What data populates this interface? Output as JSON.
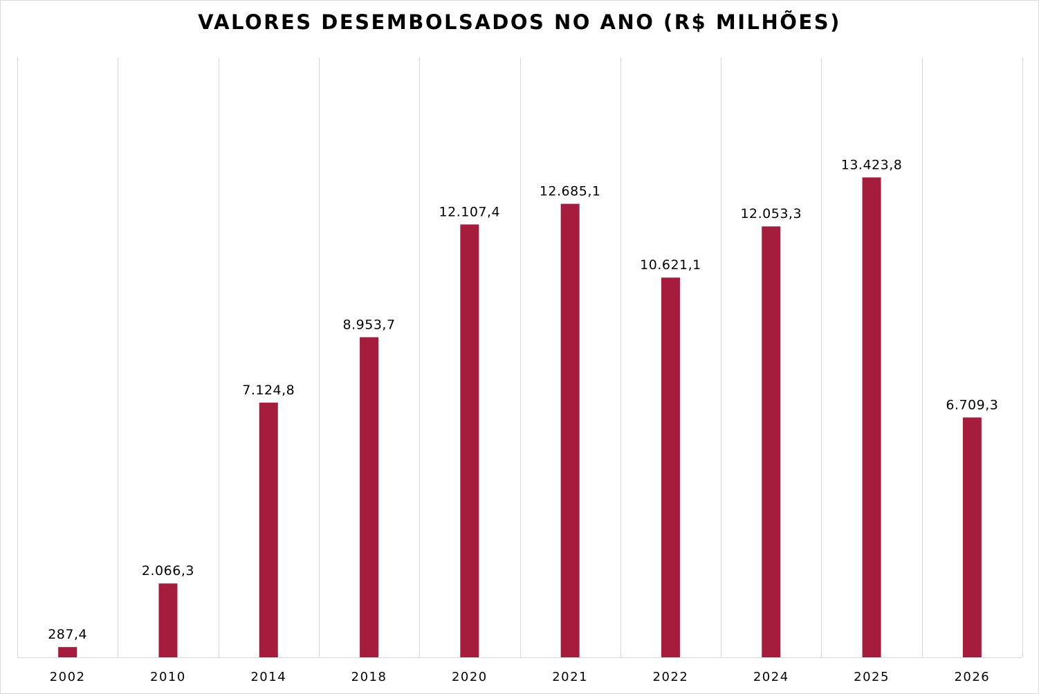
{
  "chart_data": {
    "type": "bar",
    "title": "VALORES DESEMBOLSADOS NO ANO (R$ MILHÕES)",
    "xlabel": "",
    "ylabel": "",
    "categories": [
      "2002",
      "2010",
      "2014",
      "2018",
      "2020",
      "2021",
      "2022",
      "2024",
      "2025",
      "2026"
    ],
    "values": [
      287.4,
      2066.3,
      7124.8,
      8953.7,
      12107.4,
      12685.1,
      10621.1,
      12053.3,
      13423.8,
      6709.3
    ],
    "data_labels": [
      "287,4",
      "2.066,3",
      "7.124,8",
      "8.953,7",
      "12.107,4",
      "12.685,1",
      "10.621,1",
      "12.053,3",
      "13.423,8",
      "6.709,3"
    ],
    "bar_color": "#A61C3C",
    "gridlines": "vertical",
    "gridline_color": "#d9d9d9",
    "legend": "none"
  }
}
